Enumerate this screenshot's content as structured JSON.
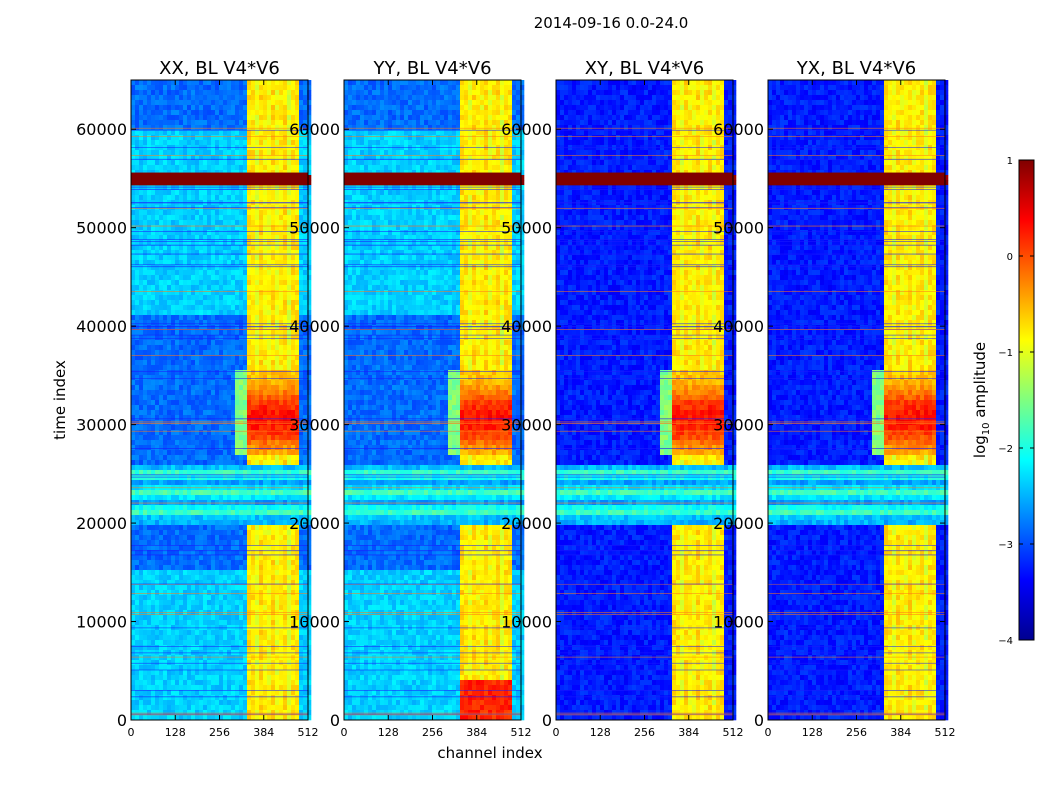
{
  "chart_data": {
    "type": "heatmap",
    "suptitle": "2014-09-16 0.0-24.0",
    "xlabel": "channel index",
    "ylabel": "time index",
    "xlim": [
      0,
      512
    ],
    "ylim": [
      0,
      65000
    ],
    "xticks": [
      0,
      128,
      256,
      384,
      512
    ],
    "yticks": [
      0,
      10000,
      20000,
      30000,
      40000,
      50000,
      60000
    ],
    "panels": [
      {
        "title": "XX, BL V4*V6",
        "id": "xx"
      },
      {
        "title": "YY, BL V4*V6",
        "id": "yy"
      },
      {
        "title": "XY, BL V4*V6",
        "id": "xy"
      },
      {
        "title": "YX, BL V4*V6",
        "id": "yx"
      }
    ],
    "colorbar": {
      "label": "log10 amplitude",
      "label_main": "log",
      "label_sub": "10",
      "label_tail": " amplitude",
      "min": -4,
      "max": 1,
      "ticks": [
        1,
        0,
        -1,
        -2,
        -3,
        -4
      ],
      "tick_labels": [
        "1",
        "0",
        "−1",
        "−2",
        "−3",
        "−4"
      ],
      "colormap": "jet"
    },
    "features": {
      "strong_channel_band": [
        330,
        490
      ],
      "flagged_time_band": [
        54300,
        55600
      ],
      "rfi_time_band": [
        19800,
        26000
      ],
      "bright_bursts_time": [
        27000,
        35500
      ],
      "noisy_time_band": [
        41000,
        60000
      ]
    }
  }
}
